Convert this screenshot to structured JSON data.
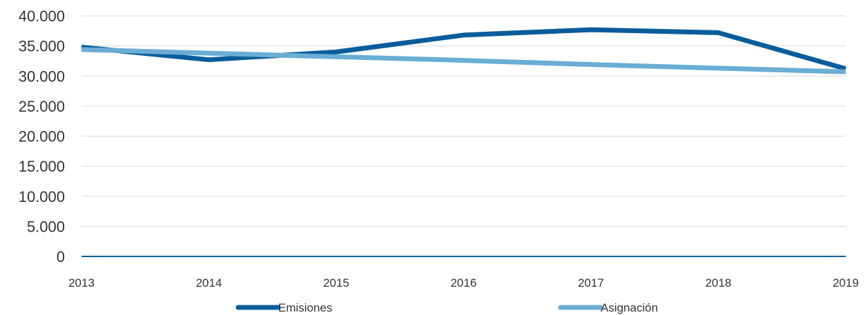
{
  "chart_data": {
    "type": "line",
    "x": [
      "2013",
      "2014",
      "2015",
      "2016",
      "2017",
      "2018",
      "2019"
    ],
    "series": [
      {
        "name": "Emisiones",
        "values": [
          34800,
          32700,
          34000,
          36800,
          37700,
          37200,
          31200
        ],
        "color": "#0A5D9B"
      },
      {
        "name": "Asignación",
        "values": [
          34400,
          33800,
          33200,
          32600,
          31900,
          31300,
          30700
        ],
        "color": "#6AADD5"
      }
    ],
    "yticks": [
      "0",
      "5.000",
      "10.000",
      "15.000",
      "20.000",
      "25.000",
      "30.000",
      "35.000",
      "40.000"
    ],
    "ylim": [
      0,
      40000
    ],
    "grid": true,
    "legend": "bottom",
    "title": "",
    "xlabel": "",
    "ylabel": ""
  }
}
